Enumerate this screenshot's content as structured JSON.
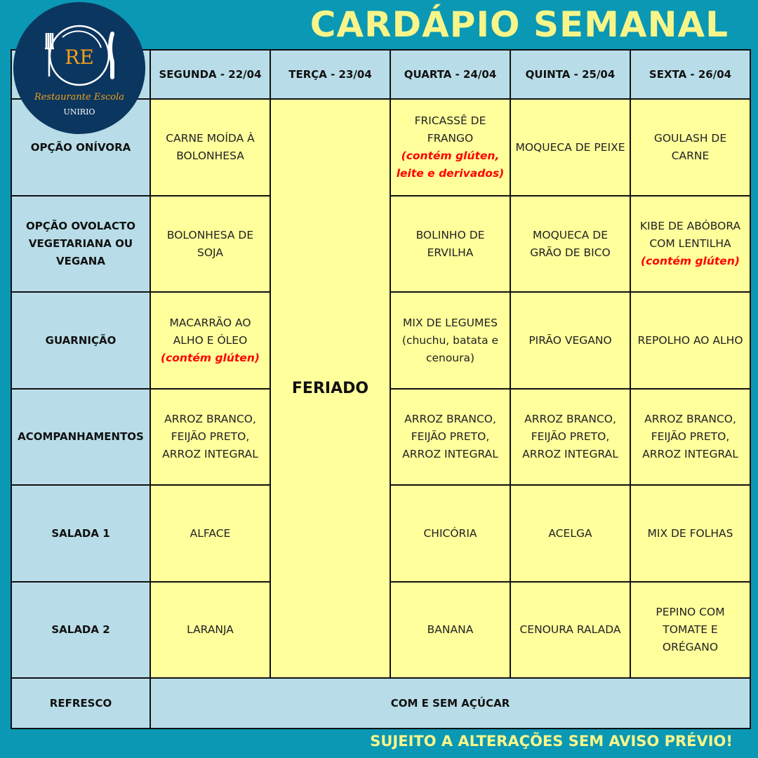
{
  "title": "CARDÁPIO SEMANAL",
  "footer": "SUJEITO A ALTERAÇÕES SEM AVISO PRÉVIO!",
  "logo": {
    "initials": "RE",
    "name": "Restaurante Escola",
    "org": "UNIRIO"
  },
  "colors": {
    "background": "#0a98b4",
    "header": "#b8dde8",
    "cell": "#ffff9c",
    "title": "#f7f58a",
    "note": "#ff0000"
  },
  "days": [
    "SEGUNDA - 22/04",
    "TERÇA - 23/04",
    "QUARTA - 24/04",
    "QUINTA - 25/04",
    "SEXTA - 26/04"
  ],
  "holiday": "FERIADO",
  "rows": [
    {
      "label": [
        "OPÇÃO ONÍVORA"
      ],
      "cells": [
        {
          "lines": [
            "CARNE MOÍDA À",
            "BOLONHESA"
          ]
        },
        {
          "lines": [
            "FRICASSÊ DE",
            "FRANGO"
          ],
          "note": [
            "(contém glúten,",
            "leite e derivados)"
          ]
        },
        {
          "lines": [
            "MOQUECA DE PEIXE"
          ]
        },
        {
          "lines": [
            "GOULASH DE",
            "CARNE"
          ]
        }
      ]
    },
    {
      "label": [
        "OPÇÃO OVOLACTO",
        "VEGETARIANA OU",
        "VEGANA"
      ],
      "cells": [
        {
          "lines": [
            "BOLONHESA DE",
            "SOJA"
          ]
        },
        {
          "lines": [
            "BOLINHO DE",
            "ERVILHA"
          ]
        },
        {
          "lines": [
            "MOQUECA DE",
            "GRÃO DE BICO"
          ]
        },
        {
          "lines": [
            "KIBE DE ABÓBORA",
            "COM LENTILHA"
          ],
          "note": [
            "(contém glúten)"
          ]
        }
      ]
    },
    {
      "label": [
        "GUARNIÇÃO"
      ],
      "cells": [
        {
          "lines": [
            "MACARRÃO AO",
            "ALHO E ÓLEO"
          ],
          "note": [
            "(contém glúten)"
          ]
        },
        {
          "lines": [
            "MIX DE LEGUMES",
            "(chuchu, batata e",
            "cenoura)"
          ]
        },
        {
          "lines": [
            "PIRÃO VEGANO"
          ]
        },
        {
          "lines": [
            "REPOLHO AO ALHO"
          ]
        }
      ]
    },
    {
      "label": [
        "ACOMPANHAMENTOS"
      ],
      "cells": [
        {
          "lines": [
            "ARROZ BRANCO,",
            "FEIJÃO PRETO,",
            "ARROZ INTEGRAL"
          ]
        },
        {
          "lines": [
            "ARROZ BRANCO,",
            "FEIJÃO PRETO,",
            "ARROZ INTEGRAL"
          ]
        },
        {
          "lines": [
            "ARROZ BRANCO,",
            "FEIJÃO PRETO,",
            "ARROZ INTEGRAL"
          ]
        },
        {
          "lines": [
            "ARROZ BRANCO,",
            "FEIJÃO PRETO,",
            "ARROZ INTEGRAL"
          ]
        }
      ]
    },
    {
      "label": [
        "SALADA 1"
      ],
      "cells": [
        {
          "lines": [
            "ALFACE"
          ]
        },
        {
          "lines": [
            "CHICÓRIA"
          ]
        },
        {
          "lines": [
            "ACELGA"
          ]
        },
        {
          "lines": [
            "MIX DE FOLHAS"
          ]
        }
      ]
    },
    {
      "label": [
        "SALADA 2"
      ],
      "cells": [
        {
          "lines": [
            "LARANJA"
          ]
        },
        {
          "lines": [
            "BANANA"
          ]
        },
        {
          "lines": [
            "CENOURA RALADA"
          ]
        },
        {
          "lines": [
            "PEPINO COM",
            "TOMATE E",
            "ORÉGANO"
          ]
        }
      ]
    }
  ],
  "drink": {
    "label": "REFRESCO",
    "value": "COM E SEM AÇÚCAR"
  }
}
